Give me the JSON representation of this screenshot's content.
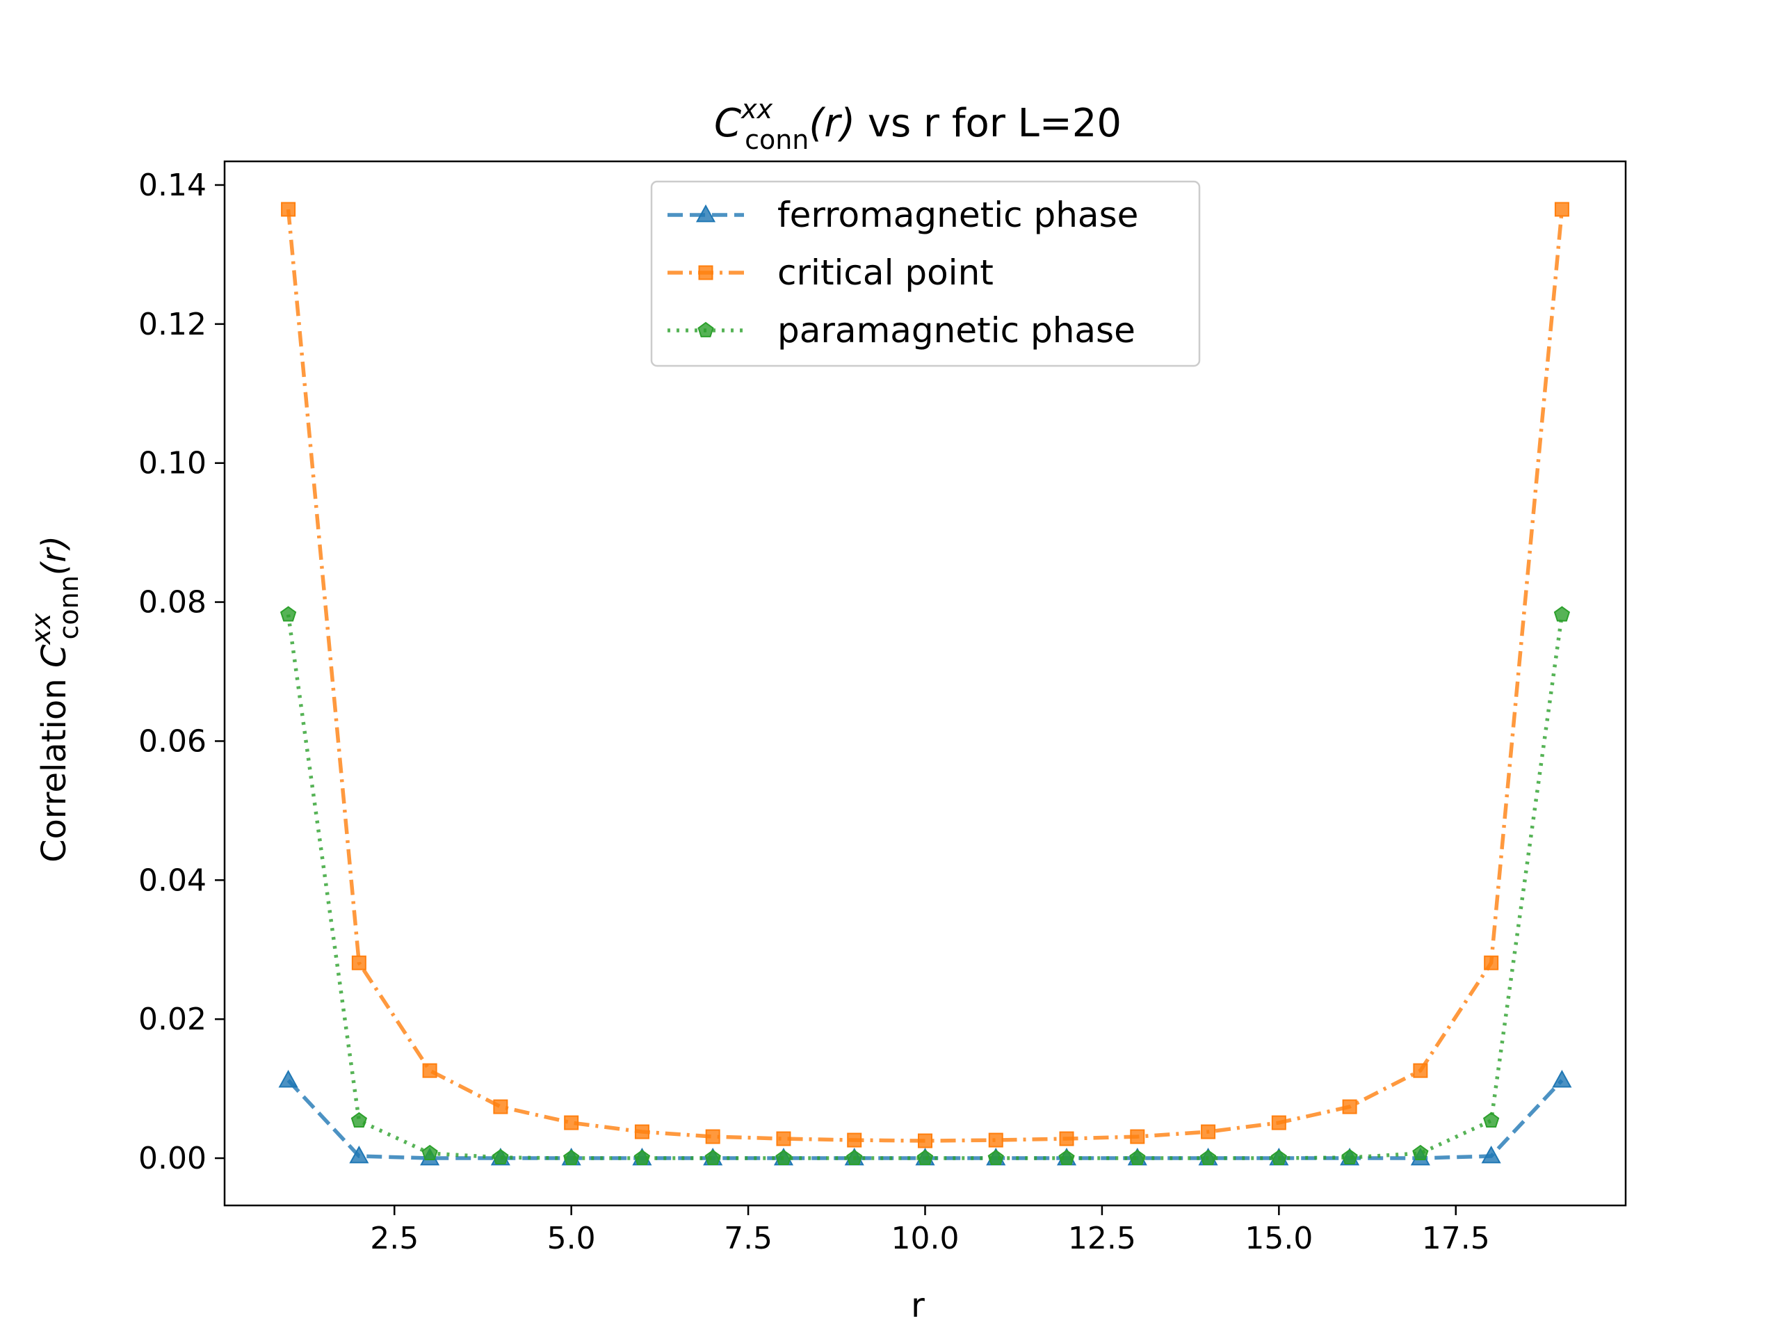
{
  "chart_data": {
    "type": "line",
    "title": {
      "main": "C",
      "sup": "xx",
      "sub": "conn",
      "rest_italic": "(r)",
      "rest": " vs r for L=20"
    },
    "xlabel": "r",
    "ylabel": {
      "prefix": "Correlation ",
      "main": "C",
      "sup": "xx",
      "sub": "conn",
      "rest_italic": "(r)"
    },
    "xlim": [
      0.1,
      19.9
    ],
    "ylim": [
      -0.0068,
      0.1434
    ],
    "xticks": [
      2.5,
      5.0,
      7.5,
      10.0,
      12.5,
      15.0,
      17.5
    ],
    "xtick_labels": [
      "2.5",
      "5.0",
      "7.5",
      "10.0",
      "12.5",
      "15.0",
      "17.5"
    ],
    "yticks": [
      0.0,
      0.02,
      0.04,
      0.06,
      0.08,
      0.1,
      0.12,
      0.14
    ],
    "ytick_labels": [
      "0.00",
      "0.02",
      "0.04",
      "0.06",
      "0.08",
      "0.10",
      "0.12",
      "0.14"
    ],
    "grid": false,
    "legend_position": "top-center",
    "x": [
      1,
      2,
      3,
      4,
      5,
      6,
      7,
      8,
      9,
      10,
      11,
      12,
      13,
      14,
      15,
      16,
      17,
      18,
      19
    ],
    "series": [
      {
        "name": "ferromagnetic phase",
        "color": "#1f77b4",
        "linestyle": "dashed",
        "marker": "triangle",
        "values": [
          0.0112,
          0.0003,
          0.0,
          0.0,
          0.0,
          0.0,
          0.0,
          0.0,
          0.0,
          0.0,
          0.0,
          0.0,
          0.0,
          0.0,
          0.0,
          0.0,
          0.0,
          0.0003,
          0.0112
        ]
      },
      {
        "name": "critical point",
        "color": "#ff7f0e",
        "linestyle": "dashdot",
        "marker": "square",
        "values": [
          0.1365,
          0.0281,
          0.0126,
          0.0074,
          0.0051,
          0.0038,
          0.0031,
          0.0028,
          0.0026,
          0.0025,
          0.0026,
          0.0028,
          0.0031,
          0.0038,
          0.0051,
          0.0074,
          0.0126,
          0.0281,
          0.1365
        ]
      },
      {
        "name": "paramagnetic phase",
        "color": "#2ca02c",
        "linestyle": "dotted",
        "marker": "pentagon",
        "values": [
          0.0782,
          0.0054,
          0.0007,
          0.0001,
          0.0,
          0.0,
          0.0,
          0.0,
          0.0,
          0.0,
          0.0,
          0.0,
          0.0,
          0.0,
          0.0,
          0.0001,
          0.0007,
          0.0054,
          0.0782
        ]
      }
    ]
  }
}
